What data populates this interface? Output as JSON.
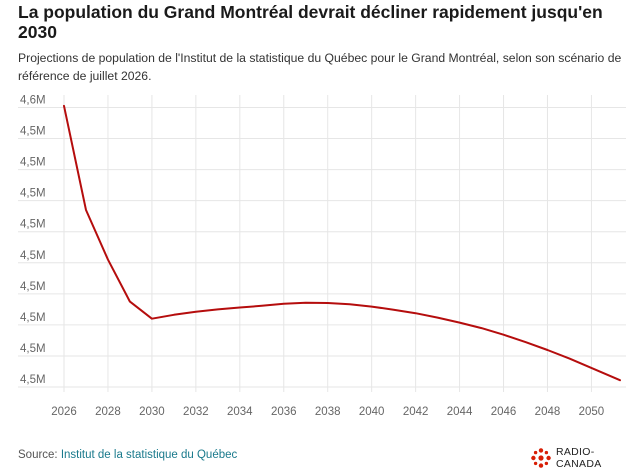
{
  "header": {
    "title": "La population du Grand Montréal devrait décliner rapidement jusqu'en 2030",
    "subtitle": "Projections de population de l'Institut de la statistique du Québec pour le Grand Montréal, selon son scénario de référence de juillet 2026."
  },
  "footer": {
    "source_prefix": "Source: ",
    "source_link": "Institut de la statistique du Québec",
    "brand": "RADIO-CANADA"
  },
  "colors": {
    "line": "#b50d0d",
    "grid": "#e6e6e6",
    "brand_red": "#d81e05"
  },
  "chart_data": {
    "type": "line",
    "title": "La population du Grand Montréal devrait décliner rapidement jusqu'en 2030",
    "xlabel": "",
    "ylabel": "",
    "x_ticks": [
      "2026",
      "2028",
      "2030",
      "2032",
      "2034",
      "2036",
      "2038",
      "2040",
      "2042",
      "2044",
      "2046",
      "2048",
      "2050"
    ],
    "y_ticks": [
      "4,6M",
      "4,5M",
      "4,5M",
      "4,5M",
      "4,5M",
      "4,5M",
      "4,5M",
      "4,5M",
      "4,5M",
      "4,5M"
    ],
    "y_tick_values": [
      4600000,
      4580000,
      4560000,
      4540000,
      4520000,
      4500000,
      4480000,
      4460000,
      4440000,
      4420000
    ],
    "xlim": [
      2026,
      2051.3
    ],
    "ylim": [
      4420000,
      4600000
    ],
    "grid": true,
    "series": [
      {
        "name": "",
        "x": [
          2026,
          2027,
          2028,
          2029,
          2030,
          2031,
          2032,
          2033,
          2034,
          2035,
          2036,
          2037,
          2038,
          2039,
          2040,
          2041,
          2042,
          2043,
          2044,
          2045,
          2046,
          2047,
          2048,
          2049,
          2050,
          2051.3
        ],
        "values": [
          4601000,
          4534000,
          4502000,
          4475000,
          4464000,
          4466500,
          4468500,
          4470000,
          4471200,
          4472300,
          4473600,
          4474200,
          4474100,
          4473300,
          4471800,
          4469800,
          4467500,
          4464700,
          4461500,
          4457900,
          4453700,
          4448900,
          4443800,
          4438300,
          4432300,
          4424400
        ]
      }
    ]
  }
}
